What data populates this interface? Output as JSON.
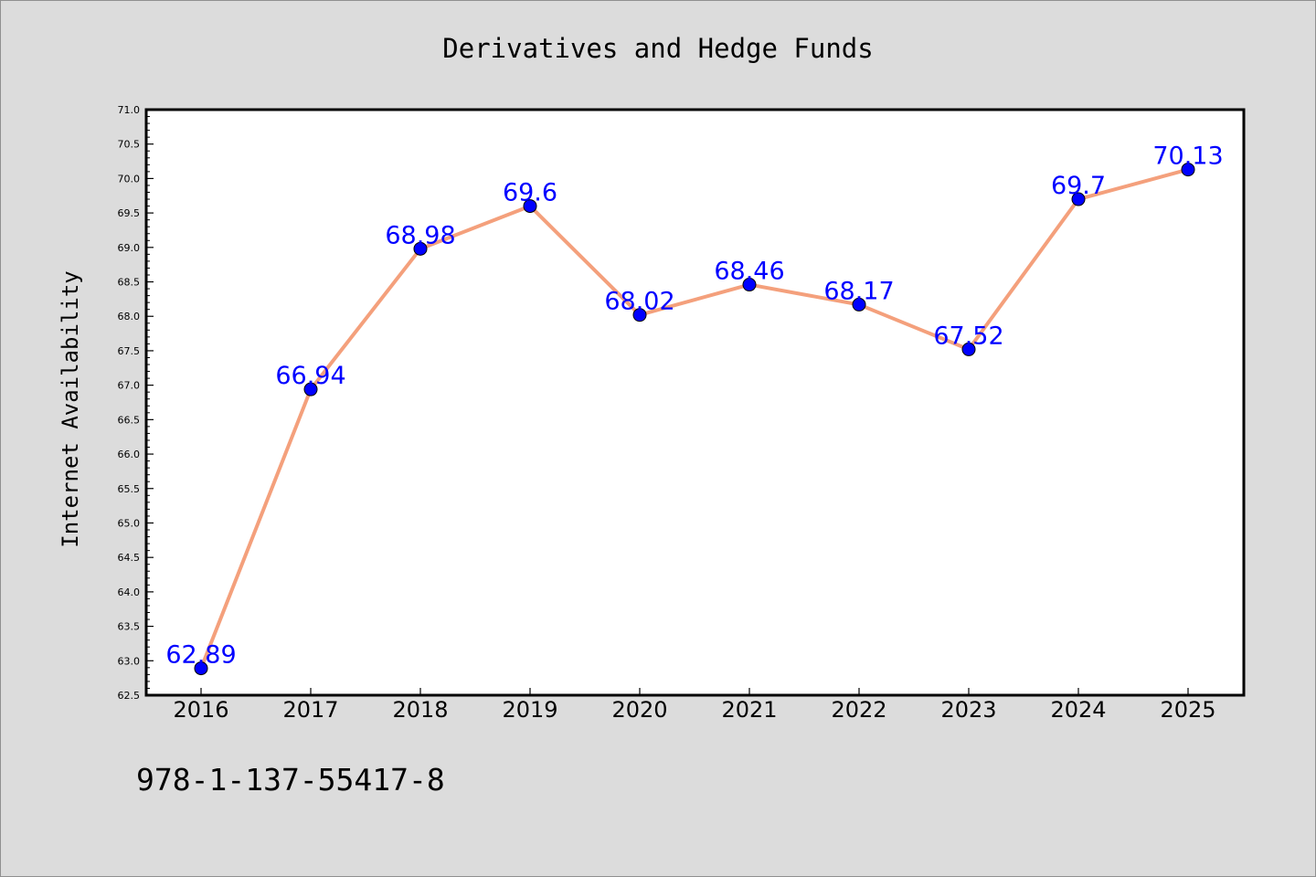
{
  "chart_data": {
    "type": "line",
    "title": "Derivatives and Hedge Funds",
    "xlabel": "",
    "ylabel": "Internet Availability",
    "x": [
      "2016",
      "2017",
      "2018",
      "2019",
      "2020",
      "2021",
      "2022",
      "2023",
      "2024",
      "2025"
    ],
    "series": [
      {
        "values": [
          62.89,
          66.94,
          68.98,
          69.6,
          68.02,
          68.46,
          68.17,
          67.52,
          69.7,
          70.13
        ],
        "labels": [
          "62.89",
          "66.94",
          "68.98",
          "69.6",
          "68.02",
          "68.46",
          "68.17",
          "67.52",
          "69.7",
          "70.13"
        ],
        "line_color": "#f4a07c",
        "marker_color": "#0000ff"
      }
    ],
    "ylim": [
      62.5,
      71.0
    ],
    "y_ticks": [
      "62.5",
      "63.0",
      "63.5",
      "64.0",
      "64.5",
      "65.0",
      "65.5",
      "66.0",
      "66.5",
      "67.0",
      "67.5",
      "68.0",
      "68.5",
      "69.0",
      "69.5",
      "70.0",
      "70.5",
      "71.0"
    ],
    "grid": false,
    "legend": "none",
    "data_label_color": "#0000ff"
  },
  "footer_text": "978-1-137-55417-8"
}
